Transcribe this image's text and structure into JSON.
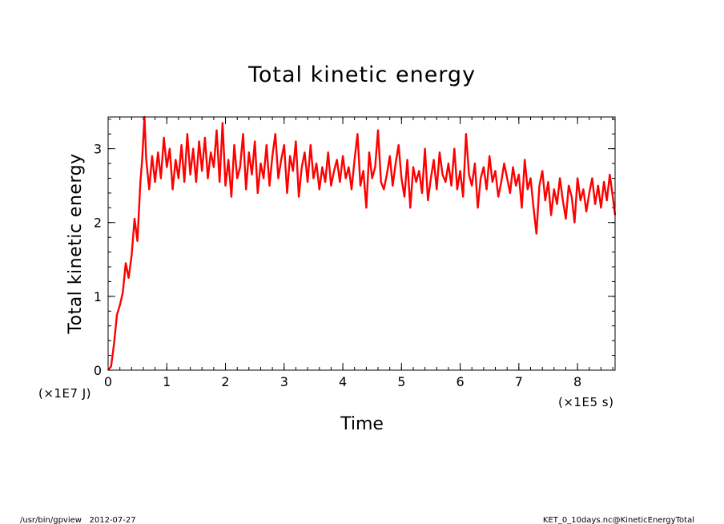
{
  "chart_data": {
    "type": "line",
    "title": "Total kinetic energy",
    "xlabel": "Time",
    "ylabel": "Total kinetic energy",
    "x_unit_label": "(×1E5 s)",
    "y_unit_label": "(×1E7 J)",
    "xlim": [
      0,
      8.64
    ],
    "ylim": [
      0,
      3.43
    ],
    "x_ticks": [
      0,
      1,
      2,
      3,
      4,
      5,
      6,
      7,
      8
    ],
    "y_ticks": [
      0,
      1,
      2,
      3
    ],
    "x_tick_labels": [
      "0",
      "1",
      "2",
      "3",
      "4",
      "5",
      "6",
      "7",
      "8"
    ],
    "y_tick_labels": [
      "0",
      "1",
      "2",
      "3"
    ],
    "grid": false,
    "series": [
      {
        "color": "#ff0000",
        "x": [
          0,
          0.05,
          0.1,
          0.15,
          0.2,
          0.25,
          0.3,
          0.35,
          0.4,
          0.45,
          0.5,
          0.55,
          0.58,
          0.62,
          0.65,
          0.7,
          0.75,
          0.8,
          0.85,
          0.9,
          0.95,
          1.0,
          1.05,
          1.1,
          1.15,
          1.2,
          1.25,
          1.3,
          1.35,
          1.4,
          1.45,
          1.5,
          1.55,
          1.6,
          1.65,
          1.7,
          1.75,
          1.8,
          1.85,
          1.9,
          1.95,
          2.0,
          2.05,
          2.1,
          2.15,
          2.2,
          2.25,
          2.3,
          2.35,
          2.4,
          2.45,
          2.5,
          2.55,
          2.6,
          2.65,
          2.7,
          2.75,
          2.8,
          2.85,
          2.9,
          2.95,
          3.0,
          3.05,
          3.1,
          3.15,
          3.2,
          3.25,
          3.3,
          3.35,
          3.4,
          3.45,
          3.5,
          3.55,
          3.6,
          3.65,
          3.7,
          3.75,
          3.8,
          3.85,
          3.9,
          3.95,
          4.0,
          4.05,
          4.1,
          4.15,
          4.2,
          4.25,
          4.3,
          4.35,
          4.4,
          4.45,
          4.5,
          4.55,
          4.6,
          4.65,
          4.7,
          4.75,
          4.8,
          4.85,
          4.9,
          4.95,
          5.0,
          5.05,
          5.1,
          5.15,
          5.2,
          5.25,
          5.3,
          5.35,
          5.4,
          5.45,
          5.5,
          5.55,
          5.6,
          5.65,
          5.7,
          5.75,
          5.8,
          5.85,
          5.9,
          5.95,
          6.0,
          6.05,
          6.1,
          6.15,
          6.2,
          6.25,
          6.3,
          6.35,
          6.4,
          6.45,
          6.5,
          6.55,
          6.6,
          6.65,
          6.7,
          6.75,
          6.8,
          6.85,
          6.9,
          6.95,
          7.0,
          7.05,
          7.1,
          7.15,
          7.2,
          7.25,
          7.3,
          7.35,
          7.4,
          7.45,
          7.5,
          7.55,
          7.6,
          7.65,
          7.7,
          7.75,
          7.8,
          7.85,
          7.9,
          7.95,
          8.0,
          8.05,
          8.1,
          8.15,
          8.2,
          8.25,
          8.3,
          8.35,
          8.4,
          8.45,
          8.5,
          8.55,
          8.6,
          8.64
        ],
        "y": [
          0,
          0.05,
          0.35,
          0.75,
          0.88,
          1.05,
          1.45,
          1.25,
          1.55,
          2.05,
          1.75,
          2.55,
          2.85,
          3.43,
          2.85,
          2.45,
          2.9,
          2.55,
          2.95,
          2.6,
          3.15,
          2.75,
          3.0,
          2.45,
          2.85,
          2.6,
          3.05,
          2.55,
          3.2,
          2.65,
          3.0,
          2.55,
          3.1,
          2.7,
          3.15,
          2.6,
          2.95,
          2.75,
          3.25,
          2.55,
          3.35,
          2.5,
          2.85,
          2.35,
          3.05,
          2.6,
          2.75,
          3.2,
          2.45,
          2.95,
          2.65,
          3.1,
          2.4,
          2.8,
          2.6,
          3.05,
          2.5,
          2.9,
          3.2,
          2.6,
          2.85,
          3.05,
          2.4,
          2.9,
          2.7,
          3.1,
          2.35,
          2.75,
          2.95,
          2.55,
          3.05,
          2.6,
          2.8,
          2.45,
          2.75,
          2.55,
          2.95,
          2.5,
          2.7,
          2.85,
          2.55,
          2.9,
          2.6,
          2.75,
          2.45,
          2.85,
          3.2,
          2.5,
          2.7,
          2.2,
          2.95,
          2.6,
          2.75,
          3.25,
          2.55,
          2.45,
          2.65,
          2.9,
          2.5,
          2.8,
          3.05,
          2.6,
          2.35,
          2.85,
          2.2,
          2.75,
          2.55,
          2.7,
          2.4,
          3.0,
          2.3,
          2.6,
          2.85,
          2.45,
          2.95,
          2.65,
          2.55,
          2.8,
          2.5,
          3.0,
          2.45,
          2.7,
          2.35,
          3.2,
          2.65,
          2.5,
          2.8,
          2.2,
          2.6,
          2.75,
          2.45,
          2.9,
          2.55,
          2.7,
          2.35,
          2.55,
          2.8,
          2.6,
          2.4,
          2.75,
          2.5,
          2.65,
          2.2,
          2.85,
          2.45,
          2.6,
          2.2,
          1.85,
          2.5,
          2.7,
          2.3,
          2.55,
          2.1,
          2.45,
          2.25,
          2.6,
          2.3,
          2.05,
          2.5,
          2.35,
          2.0,
          2.6,
          2.3,
          2.45,
          2.15,
          2.4,
          2.6,
          2.25,
          2.5,
          2.2,
          2.55,
          2.3,
          2.65,
          2.35,
          2.1
        ]
      }
    ]
  },
  "footer": {
    "left": "/usr/bin/gpview   2012-07-27",
    "right": "KET_0_10days.nc@KineticEnergyTotal"
  }
}
